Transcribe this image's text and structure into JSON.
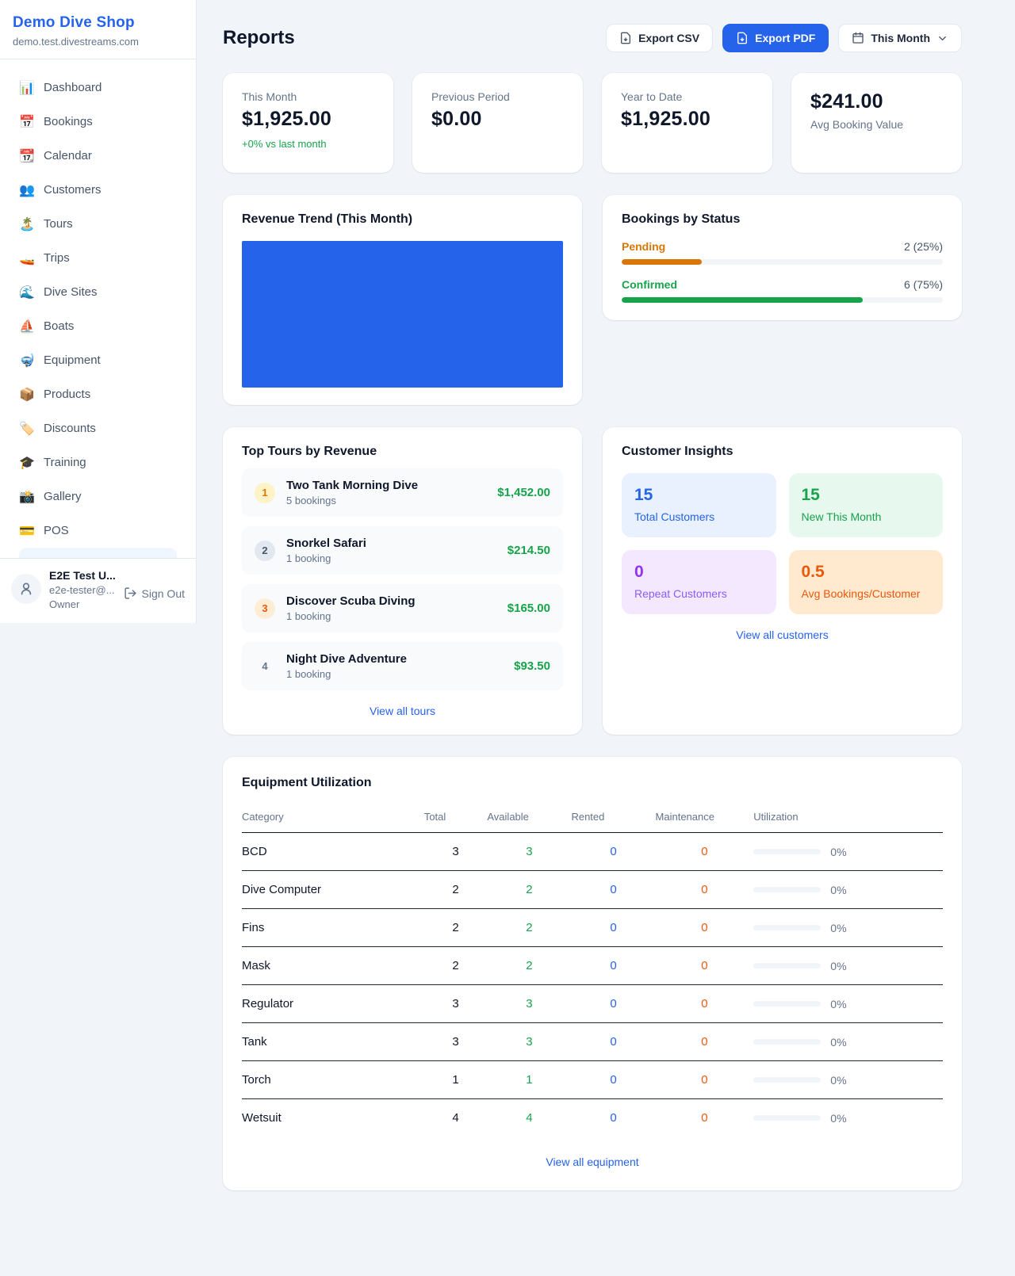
{
  "accent_color": "#2563eb",
  "sidebar": {
    "title": "Demo Dive Shop",
    "subdomain": "demo.test.divestreams.com",
    "items": [
      {
        "icon": "📊",
        "label": "Dashboard"
      },
      {
        "icon": "📅",
        "label": "Bookings"
      },
      {
        "icon": "📆",
        "label": "Calendar"
      },
      {
        "icon": "👥",
        "label": "Customers"
      },
      {
        "icon": "🏝️",
        "label": "Tours"
      },
      {
        "icon": "🚤",
        "label": "Trips"
      },
      {
        "icon": "🌊",
        "label": "Dive Sites"
      },
      {
        "icon": "⛵",
        "label": "Boats"
      },
      {
        "icon": "🤿",
        "label": "Equipment"
      },
      {
        "icon": "📦",
        "label": "Products"
      },
      {
        "icon": "🏷️",
        "label": "Discounts"
      },
      {
        "icon": "🎓",
        "label": "Training"
      },
      {
        "icon": "📸",
        "label": "Gallery"
      },
      {
        "icon": "💳",
        "label": "POS"
      }
    ],
    "user": {
      "name": "E2E Test U...",
      "email": "e2e-tester@...",
      "role": "Owner",
      "signout_label": "Sign Out"
    }
  },
  "header": {
    "title": "Reports",
    "export_csv_label": "Export CSV",
    "export_pdf_label": "Export PDF",
    "period_label": "This Month"
  },
  "stats": [
    {
      "label": "This Month",
      "value": "$1,925.00",
      "sub": "+0% vs last month"
    },
    {
      "label": "Previous Period",
      "value": "$0.00"
    },
    {
      "label": "Year to Date",
      "value": "$1,925.00"
    },
    {
      "label": "Avg Booking Value",
      "value": "$241.00"
    }
  ],
  "revenue_trend": {
    "title": "Revenue Trend (This Month)",
    "fill_color": "#2563eb"
  },
  "bookings_by_status": {
    "title": "Bookings by Status",
    "rows": [
      {
        "label": "Pending",
        "value": "2 (25%)",
        "pct": 25,
        "color": "#d97706"
      },
      {
        "label": "Confirmed",
        "value": "6 (75%)",
        "pct": 75,
        "color": "#16a34a"
      }
    ]
  },
  "top_tours": {
    "title": "Top Tours by Revenue",
    "rows": [
      {
        "rank": "1",
        "name": "Two Tank Morning Dive",
        "sub": "5 bookings",
        "amount": "$1,452.00"
      },
      {
        "rank": "2",
        "name": "Snorkel Safari",
        "sub": "1 booking",
        "amount": "$214.50"
      },
      {
        "rank": "3",
        "name": "Discover Scuba Diving",
        "sub": "1 booking",
        "amount": "$165.00"
      },
      {
        "rank": "4",
        "name": "Night Dive Adventure",
        "sub": "1 booking",
        "amount": "$93.50"
      }
    ],
    "link": "View all tours"
  },
  "customer_insights": {
    "title": "Customer Insights",
    "tiles": [
      {
        "value": "15",
        "label": "Total Customers"
      },
      {
        "value": "15",
        "label": "New This Month"
      },
      {
        "value": "0",
        "label": "Repeat Customers"
      },
      {
        "value": "0.5",
        "label": "Avg Bookings/Customer"
      }
    ],
    "link": "View all customers"
  },
  "equipment": {
    "title": "Equipment Utilization",
    "columns": [
      "Category",
      "Total",
      "Available",
      "Rented",
      "Maintenance",
      "Utilization"
    ],
    "rows": [
      {
        "category": "BCD",
        "total": "3",
        "available": "3",
        "rented": "0",
        "maintenance": "0",
        "utilization": "0%",
        "pct": 0
      },
      {
        "category": "Dive Computer",
        "total": "2",
        "available": "2",
        "rented": "0",
        "maintenance": "0",
        "utilization": "0%",
        "pct": 0
      },
      {
        "category": "Fins",
        "total": "2",
        "available": "2",
        "rented": "0",
        "maintenance": "0",
        "utilization": "0%",
        "pct": 0
      },
      {
        "category": "Mask",
        "total": "2",
        "available": "2",
        "rented": "0",
        "maintenance": "0",
        "utilization": "0%",
        "pct": 0
      },
      {
        "category": "Regulator",
        "total": "3",
        "available": "3",
        "rented": "0",
        "maintenance": "0",
        "utilization": "0%",
        "pct": 0
      },
      {
        "category": "Tank",
        "total": "3",
        "available": "3",
        "rented": "0",
        "maintenance": "0",
        "utilization": "0%",
        "pct": 0
      },
      {
        "category": "Torch",
        "total": "1",
        "available": "1",
        "rented": "0",
        "maintenance": "0",
        "utilization": "0%",
        "pct": 0
      },
      {
        "category": "Wetsuit",
        "total": "4",
        "available": "4",
        "rented": "0",
        "maintenance": "0",
        "utilization": "0%",
        "pct": 0
      }
    ],
    "link": "View all equipment"
  },
  "chart_data": [
    {
      "type": "bar",
      "title": "Revenue Trend (This Month)",
      "note": "rendered as a solid filled block (single full-width bar), no axes or labels visible",
      "color": "#2563eb"
    },
    {
      "type": "bar",
      "title": "Bookings by Status",
      "categories": [
        "Pending",
        "Confirmed"
      ],
      "values": [
        2,
        6
      ],
      "percent": [
        25,
        75
      ],
      "colors": [
        "#d97706",
        "#16a34a"
      ]
    }
  ]
}
